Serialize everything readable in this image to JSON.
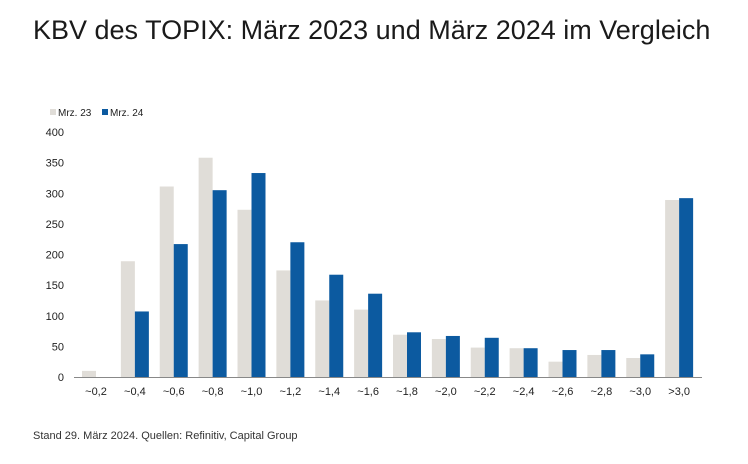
{
  "page": {
    "title": "KBV des TOPIX: März 2023 und März 2024 im Vergleich",
    "source": "Stand 29. März 2024. Quellen: Refinitiv, Capital Group"
  },
  "colors": {
    "series_2023": "#e0ddd8",
    "series_2024": "#0c5aa0",
    "axis": "#888888",
    "text": "#222222"
  },
  "chart_data": {
    "type": "bar",
    "title": "KBV des TOPIX: März 2023 und März 2024 im Vergleich",
    "xlabel": "",
    "ylabel": "",
    "ylim": [
      0,
      400
    ],
    "yticks": [
      0,
      50,
      100,
      150,
      200,
      250,
      300,
      350,
      400
    ],
    "legend_position": "top-left",
    "categories": [
      "~0,2",
      "~0,4",
      "~0,6",
      "~0,8",
      "~1,0",
      "~1,2",
      "~1,4",
      "~1,6",
      "~1,8",
      "~2,0",
      "~2,2",
      "~2,4",
      "~2,6",
      "~2,8",
      "~3,0",
      ">3,0"
    ],
    "series": [
      {
        "name": "Mrz. 23",
        "color": "#e0ddd8",
        "values": [
          10,
          189,
          311,
          358,
          273,
          174,
          125,
          110,
          69,
          62,
          48,
          47,
          25,
          36,
          31,
          289
        ]
      },
      {
        "name": "Mrz. 24",
        "color": "#0c5aa0",
        "values": [
          0,
          107,
          217,
          305,
          333,
          220,
          167,
          136,
          73,
          67,
          64,
          47,
          44,
          44,
          37,
          292
        ]
      }
    ]
  }
}
